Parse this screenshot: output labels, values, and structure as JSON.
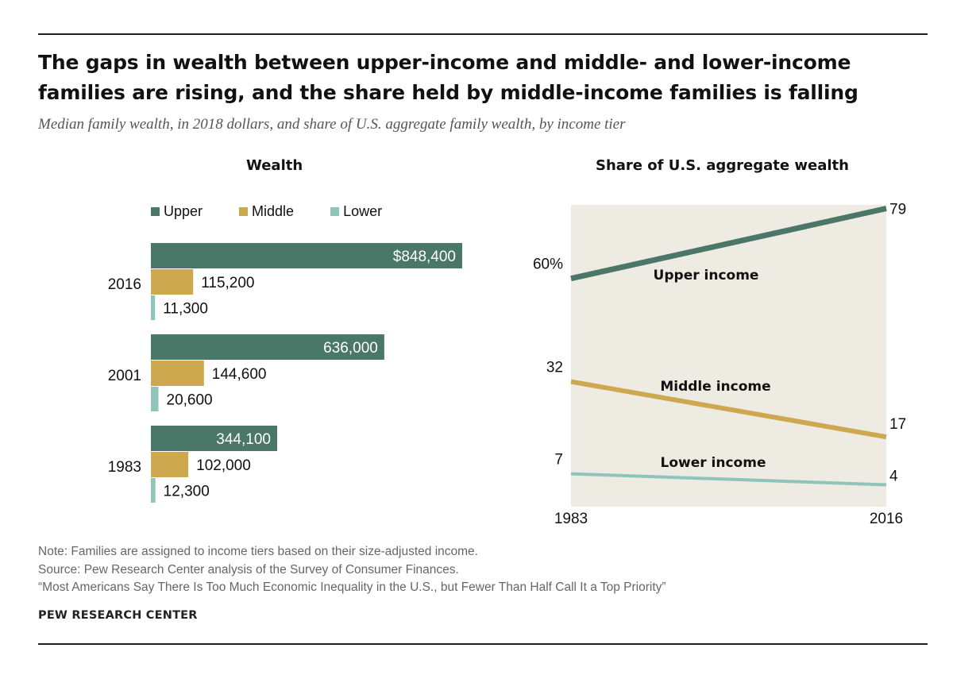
{
  "title": "The gaps in wealth between upper-income and middle- and lower-income families are rising, and the share held by middle-income families is falling",
  "subtitle": "Median family wealth, in 2018 dollars, and share of U.S. aggregate family wealth, by income tier",
  "colors": {
    "upper": "#4a7767",
    "middle": "#cda84e",
    "lower": "#8ec5b8",
    "plot_bg": "#eeebe3"
  },
  "chart_data": [
    {
      "type": "bar",
      "orientation": "horizontal",
      "title": "Wealth",
      "legend": [
        "Upper",
        "Middle",
        "Lower"
      ],
      "legend_position": "top",
      "categories": [
        "2016",
        "2001",
        "1983"
      ],
      "series": [
        {
          "name": "Upper",
          "values": [
            848400,
            636000,
            344100
          ],
          "labels": [
            "$848,400",
            "636,000",
            "344,100"
          ]
        },
        {
          "name": "Middle",
          "values": [
            115200,
            144600,
            102000
          ],
          "labels": [
            "115,200",
            "144,600",
            "102,000"
          ]
        },
        {
          "name": "Lower",
          "values": [
            11300,
            20600,
            12300
          ],
          "labels": [
            "11,300",
            "20,600",
            "12,300"
          ]
        }
      ]
    },
    {
      "type": "line",
      "title": "Share of U.S. aggregate wealth",
      "x": [
        "1983",
        "2016"
      ],
      "series": [
        {
          "name": "Upper income",
          "values": [
            60,
            79
          ],
          "labels": [
            "60%",
            "79"
          ]
        },
        {
          "name": "Middle income",
          "values": [
            32,
            17
          ],
          "labels": [
            "32",
            "17"
          ]
        },
        {
          "name": "Lower income",
          "values": [
            7,
            4
          ],
          "labels": [
            "7",
            "4"
          ]
        }
      ],
      "grid": false
    }
  ],
  "footer": {
    "note": "Note: Families are assigned to income tiers based on their size-adjusted income.",
    "source": "Source: Pew Research Center analysis of the Survey of Consumer Finances.",
    "report": "“Most Americans Say There Is Too Much Economic Inequality in the U.S., but Fewer Than Half Call It a Top Priority”",
    "org": "PEW RESEARCH CENTER"
  }
}
